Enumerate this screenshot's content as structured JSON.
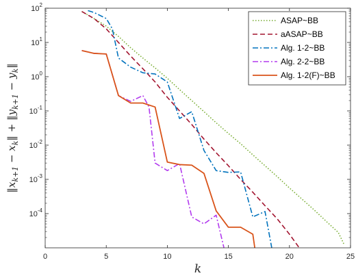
{
  "chart_data": {
    "type": "line",
    "xlabel": "k",
    "ylabel": "‖x_{k+1} − x_k‖ + ‖y_{k+1} − y_k‖",
    "y_scale": "log",
    "xlim": [
      0,
      25
    ],
    "ylim": [
      1e-05,
      100
    ],
    "grid": false,
    "legend_position": "top-right",
    "x_ticks": [
      0,
      5,
      10,
      15,
      20,
      25
    ],
    "y_ticks": [
      {
        "value": 100,
        "base": "10",
        "exp": "2"
      },
      {
        "value": 10,
        "base": "10",
        "exp": "1"
      },
      {
        "value": 1,
        "base": "10",
        "exp": "0"
      },
      {
        "value": 0.1,
        "base": "10",
        "exp": "-1"
      },
      {
        "value": 0.01,
        "base": "10",
        "exp": "-2"
      },
      {
        "value": 0.001,
        "base": "10",
        "exp": "-3"
      },
      {
        "value": 0.0001,
        "base": "10",
        "exp": "-4"
      }
    ],
    "series": [
      {
        "name": "ASAP~BB",
        "color": "#77AC30",
        "dash": "dotted",
        "x": [
          3,
          4,
          5,
          6,
          7,
          8,
          9,
          10,
          11,
          12,
          13,
          14,
          15,
          16,
          17,
          18,
          19,
          20,
          21,
          22,
          23,
          24,
          24.5
        ],
        "y": [
          80,
          50,
          30,
          15,
          7,
          3.5,
          1.8,
          0.9,
          0.42,
          0.2,
          0.095,
          0.045,
          0.022,
          0.011,
          0.0052,
          0.0025,
          0.0012,
          0.00056,
          0.00027,
          0.00013,
          6e-05,
          2.8e-05,
          1.2e-05
        ]
      },
      {
        "name": "aASAP~BB",
        "color": "#A2142F",
        "dash": "dashed",
        "x": [
          3,
          4,
          5,
          6,
          7,
          8,
          9,
          10,
          11,
          12,
          13,
          14,
          15,
          16,
          17,
          18,
          19,
          20,
          21
        ],
        "y": [
          80,
          50,
          25,
          10,
          4,
          1.7,
          0.7,
          0.25,
          0.1,
          0.04,
          0.015,
          0.006,
          0.0025,
          0.001,
          0.00042,
          0.00017,
          7e-05,
          2.5e-05,
          8e-06
        ]
      },
      {
        "name": "Alg. 1-2~BB",
        "color": "#0072BD",
        "dash": "dashdot",
        "x": [
          3.5,
          4,
          5,
          5.5,
          6,
          7,
          8,
          9,
          10,
          11,
          12,
          13,
          14,
          15,
          16,
          17,
          18,
          18.6
        ],
        "y": [
          85,
          75,
          50,
          25,
          3.5,
          1.9,
          1.3,
          1.2,
          0.7,
          0.06,
          0.095,
          0.007,
          0.0018,
          0.0016,
          0.00165,
          8e-05,
          0.000115,
          8e-06
        ]
      },
      {
        "name": "Alg. 2-2~BB",
        "color": "#B23AEE",
        "dash": "dashdot",
        "x": [
          3,
          4,
          5,
          6,
          7,
          8,
          8.5,
          9,
          10,
          11,
          12,
          13,
          14,
          14.7
        ],
        "y": [
          5.8,
          4.8,
          4.6,
          0.28,
          0.19,
          0.28,
          0.13,
          0.003,
          0.0018,
          0.0029,
          8e-05,
          5e-05,
          9e-05,
          8e-06
        ]
      },
      {
        "name": "Alg. 1-2(F)~BB",
        "color": "#D95319",
        "dash": "solid",
        "x": [
          3,
          4,
          5,
          6,
          7,
          8,
          9,
          10,
          11,
          12,
          13,
          14,
          15,
          16,
          17,
          17.2
        ],
        "y": [
          5.8,
          4.8,
          4.6,
          0.28,
          0.17,
          0.17,
          0.13,
          0.0032,
          0.0027,
          0.0026,
          0.0015,
          0.00012,
          4e-05,
          4e-05,
          2.5e-05,
          8e-06
        ]
      }
    ]
  }
}
